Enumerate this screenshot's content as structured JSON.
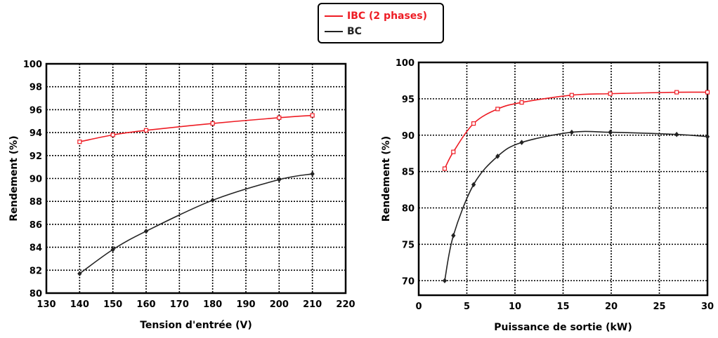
{
  "legend": {
    "entries": [
      {
        "name": "IBC (2 phases)",
        "color": "#ee1c24"
      },
      {
        "name": "BC",
        "color": "#222222"
      }
    ]
  },
  "chart_data": [
    {
      "type": "line",
      "xlabel": "Tension d'entrée (V)",
      "ylabel": "Rendement (%)",
      "xlim": [
        130,
        220
      ],
      "ylim": [
        80,
        100
      ],
      "xticks": [
        130,
        140,
        150,
        160,
        170,
        180,
        190,
        200,
        210,
        220
      ],
      "yticks": [
        80,
        82,
        84,
        86,
        88,
        90,
        92,
        94,
        96,
        98,
        100
      ],
      "grid": true,
      "series": [
        {
          "name": "IBC (2 phases)",
          "color": "#ee1c24",
          "marker": "square",
          "x": [
            140,
            150,
            160,
            180,
            200,
            210
          ],
          "y": [
            93.2,
            93.8,
            94.2,
            94.8,
            95.3,
            95.5
          ]
        },
        {
          "name": "BC",
          "color": "#222222",
          "marker": "diamond",
          "x": [
            140,
            150,
            160,
            180,
            200,
            210
          ],
          "y": [
            81.7,
            83.8,
            85.4,
            88.1,
            89.9,
            90.4
          ]
        }
      ]
    },
    {
      "type": "line",
      "xlabel": "Puissance de sortie (kW)",
      "ylabel": "Rendement (%)",
      "xlim": [
        0,
        30
      ],
      "ylim": [
        68,
        100
      ],
      "xticks": [
        0,
        5,
        10,
        15,
        20,
        25,
        30
      ],
      "yticks": [
        70,
        75,
        80,
        85,
        90,
        95,
        100
      ],
      "grid": true,
      "series": [
        {
          "name": "IBC (2 phases)",
          "color": "#ee1c24",
          "marker": "square",
          "x": [
            2.7,
            3.6,
            5.7,
            8.2,
            10.7,
            15.9,
            19.9,
            26.8,
            30
          ],
          "y": [
            85.4,
            87.7,
            91.6,
            93.6,
            94.5,
            95.5,
            95.7,
            95.9,
            95.9
          ]
        },
        {
          "name": "BC",
          "color": "#222222",
          "marker": "diamond",
          "x": [
            2.7,
            3.6,
            5.7,
            8.2,
            10.7,
            15.9,
            19.9,
            26.8,
            30
          ],
          "y": [
            70.0,
            76.2,
            83.2,
            87.1,
            89.0,
            90.4,
            90.4,
            90.1,
            89.8
          ]
        }
      ]
    }
  ]
}
